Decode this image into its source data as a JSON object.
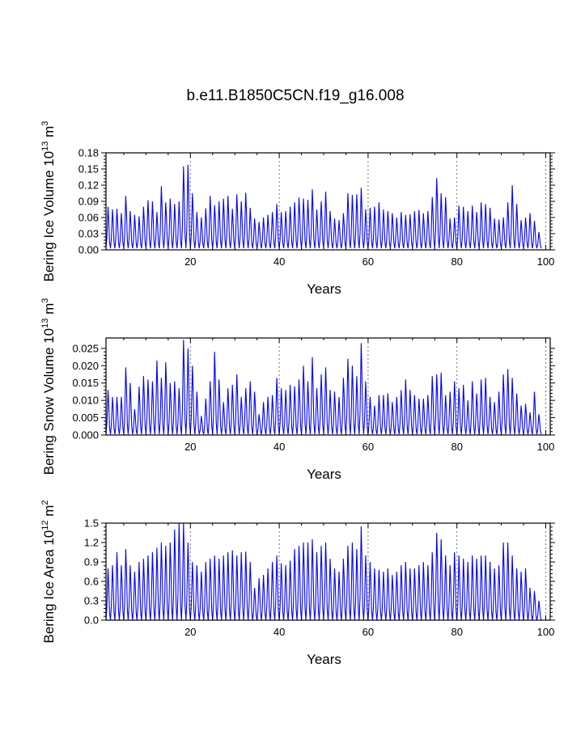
{
  "figure_title": "b.e11.B1850C5CN.f19_g16.008",
  "colors": {
    "series": "#0000ff",
    "axes": "#000000",
    "grid": "#777777"
  },
  "chart_data": [
    {
      "type": "line",
      "id": "ice-volume",
      "ylabel_main": "Bering Ice Volume 10",
      "ylabel_sup1": "13",
      "ylabel_mid": " m",
      "ylabel_sup2": "3",
      "xlabel": "Years",
      "xlim": [
        1,
        101
      ],
      "ylim": [
        0,
        0.18
      ],
      "xticks": [
        20,
        40,
        60,
        80,
        100
      ],
      "xtick_labels": [
        "20",
        "40",
        "60",
        "80",
        "100"
      ],
      "yticks": [
        0,
        0.03,
        0.06,
        0.09,
        0.12,
        0.15,
        0.18
      ],
      "ytick_labels": [
        "0.00",
        "0.03",
        "0.06",
        "0.09",
        "0.12",
        "0.15",
        "0.18"
      ],
      "dashed_vlines": [
        20,
        40,
        60,
        80,
        100
      ],
      "annual_min": 0.003,
      "annual_peaks": [
        0.08,
        0.075,
        0.076,
        0.068,
        0.1,
        0.072,
        0.065,
        0.062,
        0.08,
        0.092,
        0.09,
        0.07,
        0.118,
        0.088,
        0.095,
        0.085,
        0.09,
        0.155,
        0.158,
        0.105,
        0.07,
        0.06,
        0.077,
        0.1,
        0.083,
        0.09,
        0.095,
        0.1,
        0.076,
        0.103,
        0.09,
        0.106,
        0.078,
        0.058,
        0.052,
        0.06,
        0.065,
        0.07,
        0.085,
        0.07,
        0.072,
        0.08,
        0.088,
        0.097,
        0.095,
        0.093,
        0.112,
        0.075,
        0.09,
        0.108,
        0.072,
        0.058,
        0.055,
        0.068,
        0.105,
        0.102,
        0.103,
        0.115,
        0.075,
        0.078,
        0.08,
        0.088,
        0.075,
        0.072,
        0.068,
        0.06,
        0.07,
        0.065,
        0.066,
        0.072,
        0.074,
        0.068,
        0.072,
        0.098,
        0.133,
        0.105,
        0.098,
        0.058,
        0.06,
        0.082,
        0.08,
        0.072,
        0.082,
        0.07,
        0.088,
        0.085,
        0.078,
        0.058,
        0.056,
        0.06,
        0.088,
        0.12,
        0.085,
        0.055,
        0.06,
        0.068,
        0.054,
        0.033
      ]
    },
    {
      "type": "line",
      "id": "snow-volume",
      "ylabel_main": "Bering Snow Volume 10",
      "ylabel_sup1": "13",
      "ylabel_mid": " m",
      "ylabel_sup2": "3",
      "xlabel": "Years",
      "xlim": [
        1,
        101
      ],
      "ylim": [
        0,
        0.028
      ],
      "xticks": [
        20,
        40,
        60,
        80,
        100
      ],
      "xtick_labels": [
        "20",
        "40",
        "60",
        "80",
        "100"
      ],
      "yticks": [
        0,
        0.005,
        0.01,
        0.015,
        0.02,
        0.025
      ],
      "ytick_labels": [
        "0.000",
        "0.005",
        "0.010",
        "0.015",
        "0.020",
        "0.025"
      ],
      "dashed_vlines": [
        20,
        40,
        60,
        80,
        100
      ],
      "annual_min": 0.0002,
      "annual_peaks": [
        0.013,
        0.011,
        0.011,
        0.011,
        0.0195,
        0.015,
        0.0075,
        0.014,
        0.017,
        0.016,
        0.0155,
        0.0215,
        0.0165,
        0.021,
        0.015,
        0.0155,
        0.0135,
        0.0275,
        0.025,
        0.02,
        0.0125,
        0.0055,
        0.0105,
        0.0155,
        0.024,
        0.016,
        0.0095,
        0.0135,
        0.0145,
        0.0175,
        0.011,
        0.0135,
        0.0155,
        0.0125,
        0.006,
        0.0095,
        0.011,
        0.0115,
        0.0165,
        0.0135,
        0.013,
        0.0145,
        0.014,
        0.016,
        0.02,
        0.0155,
        0.0225,
        0.0135,
        0.0175,
        0.0195,
        0.013,
        0.0125,
        0.011,
        0.0165,
        0.022,
        0.02,
        0.017,
        0.0265,
        0.0155,
        0.011,
        0.0085,
        0.0115,
        0.0115,
        0.012,
        0.0095,
        0.011,
        0.013,
        0.016,
        0.013,
        0.0115,
        0.0105,
        0.0105,
        0.0115,
        0.017,
        0.0175,
        0.018,
        0.0115,
        0.0125,
        0.0155,
        0.0135,
        0.0145,
        0.01,
        0.0155,
        0.012,
        0.016,
        0.0165,
        0.011,
        0.0095,
        0.0125,
        0.0175,
        0.019,
        0.0165,
        0.012,
        0.0085,
        0.009,
        0.0065,
        0.0125,
        0.006
      ]
    },
    {
      "type": "line",
      "id": "ice-area",
      "ylabel_main": "Bering Ice Area 10",
      "ylabel_sup1": "12",
      "ylabel_mid": " m",
      "ylabel_sup2": "2",
      "xlabel": "Years",
      "xlim": [
        1,
        101
      ],
      "ylim": [
        0,
        1.5
      ],
      "xticks": [
        20,
        40,
        60,
        80,
        100
      ],
      "xtick_labels": [
        "20",
        "40",
        "60",
        "80",
        "100"
      ],
      "yticks": [
        0,
        0.3,
        0.6,
        0.9,
        1.2,
        1.5
      ],
      "ytick_labels": [
        "0.0",
        "0.3",
        "0.6",
        "0.9",
        "1.2",
        "1.5"
      ],
      "dashed_vlines": [
        20,
        40,
        60,
        80,
        100
      ],
      "annual_min": 0.0,
      "annual_peaks": [
        0.8,
        0.85,
        1.05,
        0.85,
        1.1,
        0.85,
        0.75,
        0.9,
        0.95,
        1.0,
        1.05,
        1.12,
        1.2,
        1.15,
        1.2,
        1.4,
        1.5,
        1.5,
        1.2,
        0.9,
        0.85,
        0.75,
        0.9,
        0.95,
        1.0,
        0.95,
        1.0,
        1.05,
        1.08,
        1.0,
        1.05,
        1.06,
        0.9,
        0.5,
        0.65,
        0.7,
        0.8,
        0.9,
        1.0,
        0.88,
        0.85,
        0.92,
        1.1,
        1.15,
        1.2,
        1.2,
        1.25,
        1.05,
        1.15,
        1.2,
        0.95,
        0.8,
        0.75,
        0.95,
        1.15,
        1.2,
        1.1,
        1.45,
        1.0,
        0.9,
        0.8,
        0.78,
        0.75,
        0.8,
        0.7,
        0.75,
        0.85,
        0.9,
        0.8,
        0.8,
        0.85,
        0.9,
        0.85,
        1.05,
        1.35,
        1.25,
        1.0,
        0.85,
        1.05,
        1.0,
        0.95,
        0.9,
        1.0,
        0.95,
        1.0,
        1.0,
        0.9,
        0.8,
        0.85,
        1.2,
        1.2,
        1.0,
        0.8,
        0.75,
        0.8,
        0.5,
        0.45,
        0.3
      ]
    }
  ]
}
